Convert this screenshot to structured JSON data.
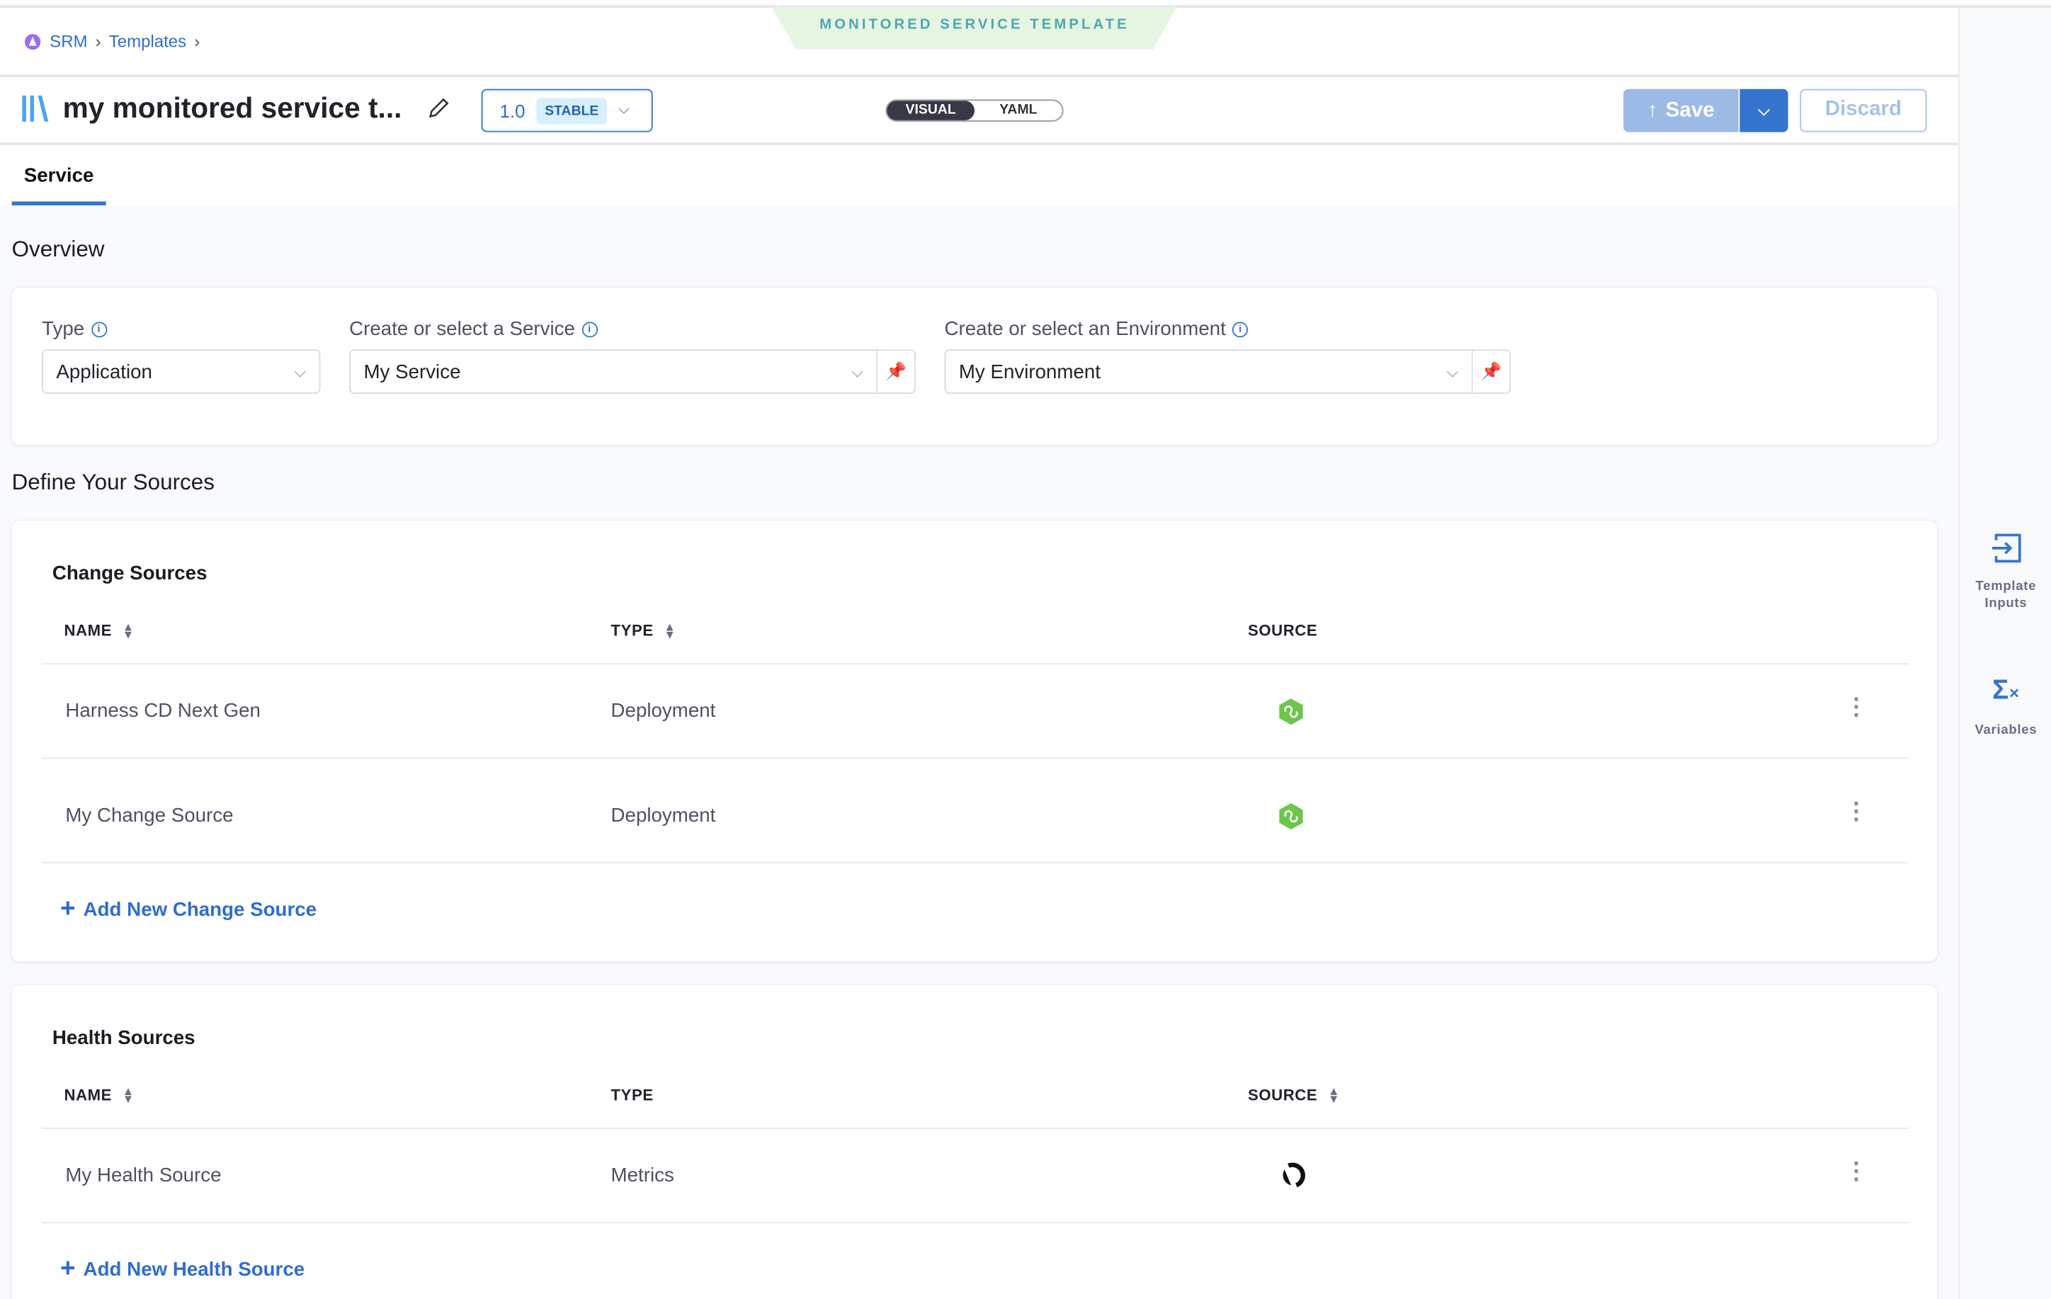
{
  "banner": "MONITORED SERVICE TEMPLATE",
  "breadcrumb": {
    "items": [
      "SRM",
      "Templates"
    ]
  },
  "header": {
    "title": "my monitored service t...",
    "version": "1.0",
    "version_badge": "STABLE",
    "toggle": [
      "VISUAL",
      "YAML"
    ],
    "toggle_selected": "VISUAL",
    "save_label": "Save",
    "discard_label": "Discard"
  },
  "tabs": [
    {
      "label": "Service",
      "active": true
    }
  ],
  "overview": {
    "heading": "Overview",
    "type_label": "Type",
    "type_value": "Application",
    "service_label": "Create or select a Service",
    "service_value": "My Service",
    "env_label": "Create or select an Environment",
    "env_value": "My Environment"
  },
  "sources_heading": "Define Your Sources",
  "change_sources": {
    "title": "Change Sources",
    "columns": [
      "NAME",
      "TYPE",
      "SOURCE"
    ],
    "rows": [
      {
        "name": "Harness CD Next Gen",
        "type": "Deployment",
        "source_icon": "harness-cd-icon"
      },
      {
        "name": "My Change Source",
        "type": "Deployment",
        "source_icon": "harness-cd-icon"
      }
    ],
    "add_label": "Add New Change Source"
  },
  "health_sources": {
    "title": "Health Sources",
    "columns": [
      "NAME",
      "TYPE",
      "SOURCE"
    ],
    "rows": [
      {
        "name": "My Health Source",
        "type": "Metrics",
        "source_icon": "appdynamics-icon"
      }
    ],
    "add_label": "Add New Health Source"
  },
  "sidebar": {
    "items": [
      {
        "label": "Template Inputs",
        "icon": "template-inputs-icon"
      },
      {
        "label": "Variables",
        "icon": "variables-icon"
      }
    ]
  },
  "colors": {
    "accent": "#3575d0",
    "banner_bg": "#e6f5e1",
    "banner_text": "#4ba8b0",
    "source_green": "#6bc64a"
  }
}
